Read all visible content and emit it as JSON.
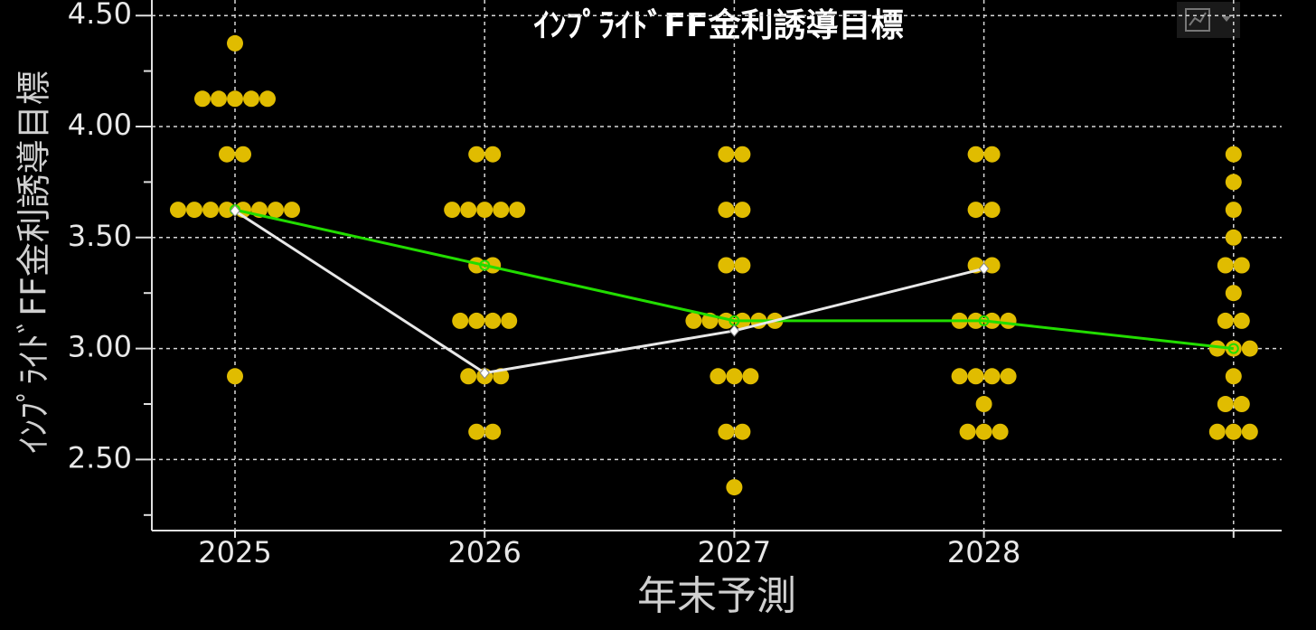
{
  "chart_data": {
    "type": "dot_plot",
    "title": "ｲﾝﾌﾟﾗｲﾄﾞFF金利誘導目標",
    "y_label": "ｲﾝﾌﾟﾗｲﾄﾞFF金利誘導目標",
    "x_label": "年末予測",
    "categories": [
      "2025",
      "2026",
      "2027",
      "2028",
      null
    ],
    "dot_color": "#e0bc00",
    "dots": [
      [
        4.375,
        4.125,
        4.125,
        4.125,
        4.125,
        4.125,
        3.875,
        3.875,
        3.625,
        3.625,
        3.625,
        3.625,
        3.625,
        3.625,
        3.625,
        3.625,
        2.875
      ],
      [
        3.875,
        3.875,
        3.625,
        3.625,
        3.625,
        3.625,
        3.625,
        3.375,
        3.375,
        3.125,
        3.125,
        3.125,
        3.125,
        2.875,
        2.875,
        2.875,
        2.625,
        2.625
      ],
      [
        3.875,
        3.875,
        3.625,
        3.625,
        3.375,
        3.375,
        3.125,
        3.125,
        3.125,
        3.125,
        3.125,
        3.125,
        2.875,
        2.875,
        2.875,
        2.625,
        2.625,
        2.375
      ],
      [
        3.875,
        3.875,
        3.625,
        3.625,
        3.375,
        3.375,
        3.125,
        3.125,
        3.125,
        3.125,
        2.875,
        2.875,
        2.875,
        2.875,
        2.75,
        2.625,
        2.625,
        2.625
      ],
      [
        3.875,
        3.75,
        3.625,
        3.5,
        3.375,
        3.375,
        3.25,
        3.125,
        3.125,
        3.0,
        3.0,
        3.0,
        2.875,
        2.75,
        2.75,
        2.625,
        2.625,
        2.625
      ]
    ],
    "series": [
      {
        "color": "#22dd00",
        "marker": "circle",
        "values": [
          3.625,
          3.375,
          3.125,
          3.125,
          3.0
        ]
      },
      {
        "color": "#e8e8e8",
        "marker": "diamond",
        "values": [
          3.62,
          2.89,
          3.08,
          3.36,
          null
        ]
      }
    ],
    "ylim": [
      2.18,
      4.57
    ],
    "yticks": [
      {
        "value": 2.5,
        "label": "2.50"
      },
      {
        "value": 3,
        "label": "3.00"
      },
      {
        "value": 3.5,
        "label": "3.50"
      },
      {
        "value": 4,
        "label": "4.00"
      },
      {
        "value": 4.5,
        "label": "4.50"
      }
    ],
    "yminor_ticks": [
      2.25,
      2.75,
      3.25,
      3.75,
      4.25
    ],
    "grid": true
  }
}
